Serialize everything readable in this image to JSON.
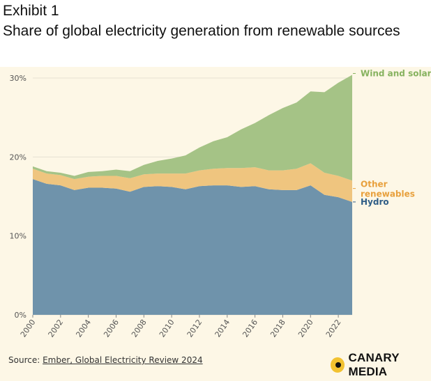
{
  "header": {
    "exhibit": "Exhibit 1",
    "title": "Share of global electricity generation from renewable sources"
  },
  "chart_data": {
    "type": "area",
    "stacked": true,
    "title": "Share of global electricity generation from renewable sources",
    "xlabel": "",
    "ylabel": "",
    "x": [
      2000,
      2001,
      2002,
      2003,
      2004,
      2005,
      2006,
      2007,
      2008,
      2009,
      2010,
      2011,
      2012,
      2013,
      2014,
      2015,
      2016,
      2017,
      2018,
      2019,
      2020,
      2021,
      2022,
      2023
    ],
    "xlim": [
      2000,
      2023
    ],
    "ylim": [
      0,
      30
    ],
    "y_ticks": [
      0,
      10,
      20,
      30
    ],
    "y_tick_labels": [
      "0%",
      "10%",
      "20%",
      "30%"
    ],
    "x_ticks": [
      2000,
      2002,
      2004,
      2006,
      2008,
      2010,
      2012,
      2014,
      2016,
      2018,
      2020,
      2022
    ],
    "x_tick_labels": [
      "2000",
      "2002",
      "2004",
      "2006",
      "2008",
      "2010",
      "2012",
      "2014",
      "2016",
      "2018",
      "2020",
      "2022"
    ],
    "grid": true,
    "series": [
      {
        "name": "Hydro",
        "color": "#6f93ab",
        "label_color": "#2f5d86",
        "values": [
          17.2,
          16.6,
          16.4,
          15.8,
          16.1,
          16.1,
          16.0,
          15.6,
          16.2,
          16.3,
          16.2,
          15.9,
          16.3,
          16.4,
          16.4,
          16.2,
          16.3,
          15.9,
          15.8,
          15.8,
          16.4,
          15.2,
          14.9,
          14.3
        ]
      },
      {
        "name": "Other renewables",
        "color": "#efc57f",
        "label_color": "#e8a03c",
        "values": [
          1.3,
          1.3,
          1.3,
          1.4,
          1.4,
          1.5,
          1.6,
          1.7,
          1.6,
          1.6,
          1.7,
          2.0,
          2.0,
          2.1,
          2.2,
          2.4,
          2.4,
          2.4,
          2.5,
          2.7,
          2.8,
          2.8,
          2.7,
          2.7
        ]
      },
      {
        "name": "Wind and solar",
        "color": "#a5c386",
        "label_color": "#86b25e",
        "values": [
          0.3,
          0.3,
          0.3,
          0.4,
          0.6,
          0.6,
          0.8,
          0.9,
          1.2,
          1.6,
          1.9,
          2.3,
          2.9,
          3.5,
          3.9,
          4.9,
          5.6,
          7.0,
          7.9,
          8.4,
          9.1,
          10.2,
          11.8,
          13.4
        ]
      }
    ],
    "legend": "direct labels at right end of areas"
  },
  "source": {
    "prefix": "Source: ",
    "link_text": "Ember, Global Electricity Review 2024"
  },
  "brand": {
    "name": "CANARY MEDIA"
  }
}
